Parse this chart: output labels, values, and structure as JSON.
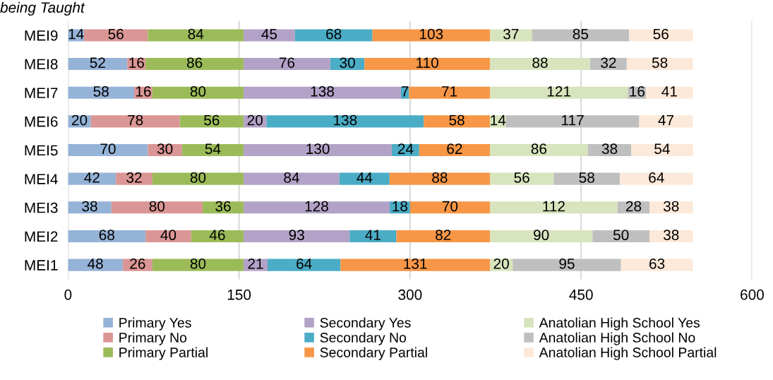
{
  "chart_data": {
    "type": "bar",
    "orientation": "horizontal",
    "stacked": true,
    "title": "being Taught",
    "categories": [
      "MEI9",
      "MEI8",
      "MEI7",
      "MEI6",
      "MEI5",
      "MEI4",
      "MEI3",
      "MEI2",
      "MEI1"
    ],
    "series": [
      {
        "name": "Primary Yes",
        "color": "#95b3d7",
        "values": [
          14,
          52,
          58,
          20,
          70,
          42,
          38,
          68,
          48
        ]
      },
      {
        "name": "Primary No",
        "color": "#da9694",
        "values": [
          56,
          16,
          16,
          78,
          30,
          32,
          80,
          40,
          26
        ]
      },
      {
        "name": "Primary Partial",
        "color": "#9bbb59",
        "values": [
          84,
          86,
          80,
          56,
          54,
          80,
          36,
          46,
          80
        ]
      },
      {
        "name": "Secondary Yes",
        "color": "#b3a2c7",
        "values": [
          45,
          76,
          138,
          20,
          130,
          84,
          128,
          93,
          21
        ]
      },
      {
        "name": "Secondary No",
        "color": "#4bacc6",
        "values": [
          68,
          30,
          7,
          138,
          24,
          44,
          18,
          41,
          64
        ]
      },
      {
        "name": "Secondary Partial",
        "color": "#f79646",
        "values": [
          103,
          110,
          71,
          58,
          62,
          88,
          70,
          82,
          131
        ]
      },
      {
        "name": "Anatolian High School Yes",
        "color": "#d7e4bd",
        "values": [
          37,
          88,
          121,
          14,
          86,
          56,
          112,
          90,
          20
        ]
      },
      {
        "name": "Anatolian High School No",
        "color": "#bfbfbf",
        "values": [
          85,
          32,
          16,
          117,
          38,
          58,
          28,
          50,
          95
        ]
      },
      {
        "name": "Anatolian High School Partial",
        "color": "#fde9d9",
        "values": [
          56,
          58,
          41,
          47,
          54,
          64,
          38,
          38,
          63
        ]
      }
    ],
    "xlim": [
      0,
      600
    ],
    "xticks": [
      0,
      150,
      300,
      450,
      600
    ],
    "grid": "x",
    "legend": "bottom",
    "data_labels": true
  }
}
